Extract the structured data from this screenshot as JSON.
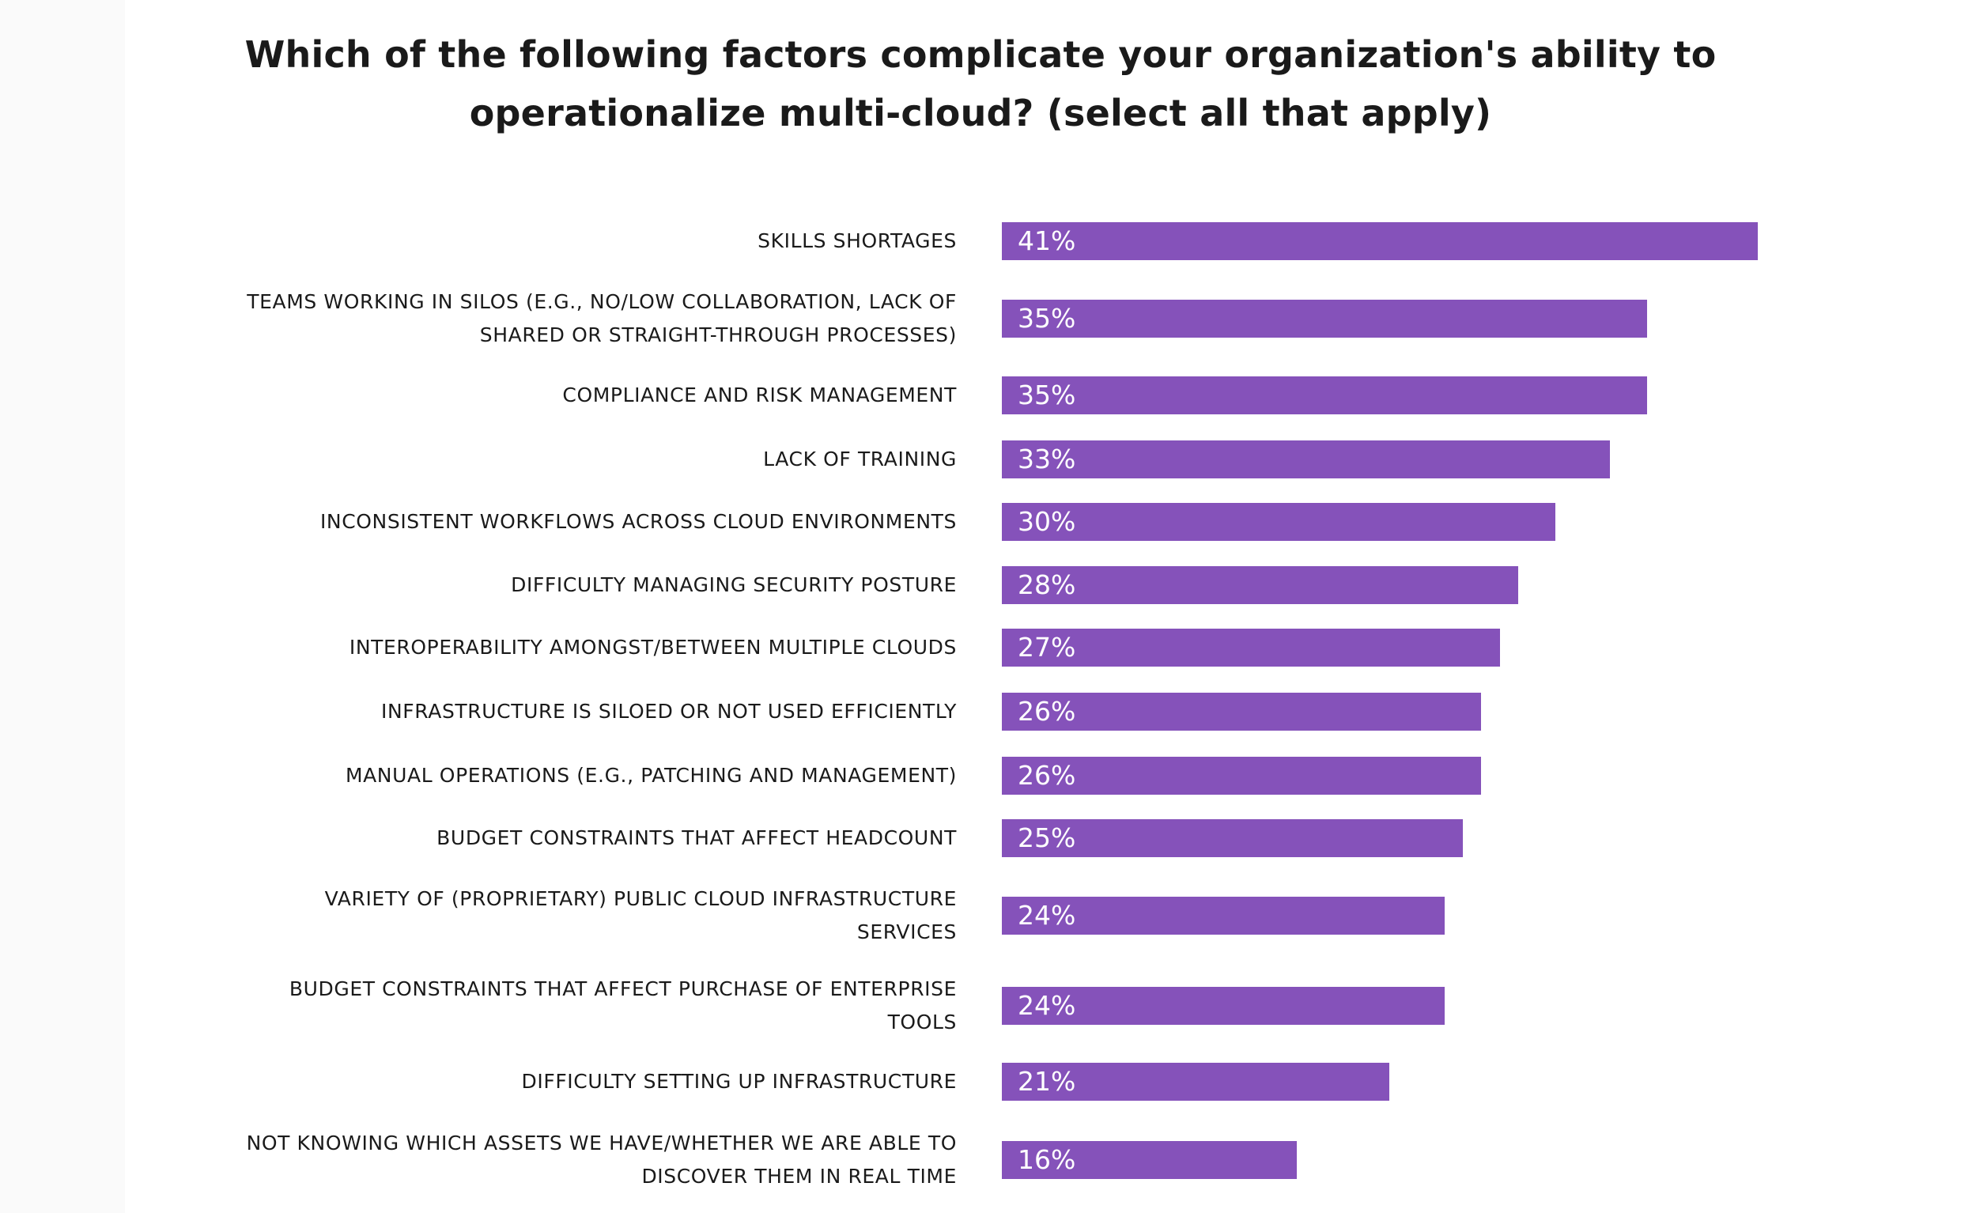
{
  "chart_data": {
    "type": "bar",
    "orientation": "horizontal",
    "title": "Which of the following factors complicate your organization's ability to operationalize multi-cloud? (select all that apply)",
    "title_lines": [
      "Which of the following factors complicate your organization's ability to",
      "operationalize multi-cloud? (select all that apply)"
    ],
    "bar_color": "#8552ba",
    "value_suffix": "%",
    "xlim": [
      0,
      41
    ],
    "grid": false,
    "categories": [
      [
        "Skills shortages"
      ],
      [
        "Teams working in silos (e.g., no/low collaboration, lack of",
        "shared or straight-through processes)"
      ],
      [
        "Compliance and risk management"
      ],
      [
        "Lack of training"
      ],
      [
        "Inconsistent workflows across cloud environments"
      ],
      [
        "Difficulty managing security posture"
      ],
      [
        "Interoperability amongst/between multiple clouds"
      ],
      [
        "Infrastructure is siloed or not used efficiently"
      ],
      [
        "Manual operations (e.g., patching and management)"
      ],
      [
        "Budget constraints that affect headcount"
      ],
      [
        "Variety of (proprietary) public cloud infrastructure",
        "services"
      ],
      [
        "Budget constraints that affect purchase of enterprise",
        "tools"
      ],
      [
        "Difficulty setting up infrastructure"
      ],
      [
        "Not knowing which assets we have/whether we are able to",
        "discover them in real time"
      ]
    ],
    "values": [
      41,
      35,
      35,
      33,
      30,
      28,
      27,
      26,
      26,
      25,
      24,
      24,
      21,
      16
    ],
    "data_labels": [
      "41%",
      "35%",
      "35%",
      "33%",
      "30%",
      "28%",
      "27%",
      "26%",
      "26%",
      "25%",
      "24%",
      "24%",
      "21%",
      "16%"
    ]
  }
}
